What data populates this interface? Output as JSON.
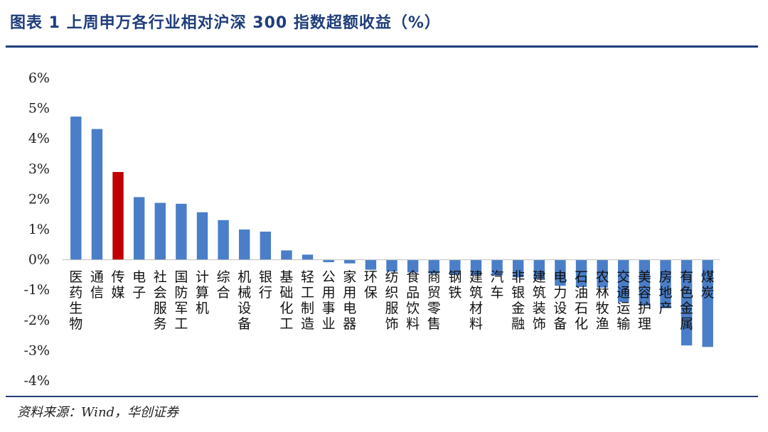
{
  "header": {
    "title": "图表 1   上周申万各行业相对沪深 300 指数超额收益（%）"
  },
  "footer": {
    "source": "资料来源：Wind，华创证券"
  },
  "colors": {
    "bar": "#4a7ec8",
    "highlight": "#c00000",
    "title": "#1f3d7a"
  },
  "chart_data": {
    "type": "bar",
    "title": "",
    "xlabel": "",
    "ylabel": "",
    "ylim": [
      -4,
      6
    ],
    "yticks": [
      "6%",
      "5%",
      "4%",
      "3%",
      "2%",
      "1%",
      "0%",
      "-1%",
      "-2%",
      "-3%",
      "-4%"
    ],
    "grid": false,
    "legend": "none",
    "highlight_category": "传媒",
    "categories": [
      "医药生物",
      "通信",
      "传媒",
      "电子",
      "社会服务",
      "国防军工",
      "计算机",
      "综合",
      "机械设备",
      "银行",
      "基础化工",
      "轻工制造",
      "公用事业",
      "家用电器",
      "环保",
      "纺织服饰",
      "食品饮料",
      "商贸零售",
      "钢铁",
      "建筑材料",
      "汽车",
      "非银金融",
      "建筑装饰",
      "电力设备",
      "石油石化",
      "农林牧渔",
      "交通运输",
      "美容护理",
      "房地产",
      "有色金属",
      "煤炭"
    ],
    "values": [
      4.73,
      4.32,
      2.9,
      2.07,
      1.88,
      1.85,
      1.57,
      1.31,
      1.0,
      0.93,
      0.31,
      0.17,
      -0.08,
      -0.12,
      -0.33,
      -0.39,
      -0.42,
      -0.46,
      -0.5,
      -0.52,
      -0.52,
      -0.58,
      -0.65,
      -0.86,
      -0.9,
      -0.92,
      -1.4,
      -1.52,
      -1.6,
      -2.83,
      -2.88
    ]
  }
}
